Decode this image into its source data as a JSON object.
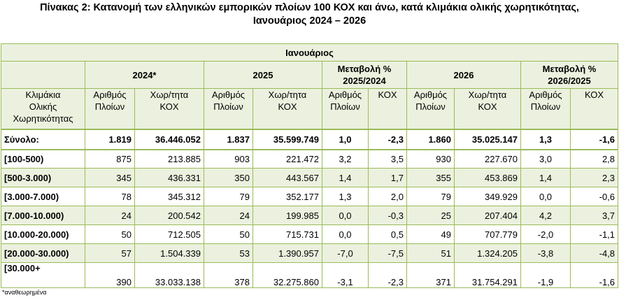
{
  "title_line1": "Πίνακας 2: Κατανομή των ελληνικών εμπορικών πλοίων 100 ΚΟΧ και άνω, κατά κλιμάκια ολικής χωρητικότητας,",
  "title_line2": "Ιανουάριος 2024 – 2026",
  "header": {
    "month": "Ιανουάριος",
    "y2024": "2024*",
    "y2025": "2025",
    "chg1_line1": "Μεταβολή %",
    "chg1_line2": "2025/2024",
    "y2026": "2026",
    "chg2_line1": "Μεταβολή %",
    "chg2_line2": "2026/2025"
  },
  "subheader": {
    "class_line1": "Κλιμάκια",
    "class_line2": "Ολικής",
    "class_line3": "Χωρητικότητας",
    "ships_line1": "Αριθμός",
    "ships_line2": "Πλοίων",
    "gt_line1": "Χωρ/τητα",
    "gt_line2": "ΚΟΧ",
    "kox": "ΚΟΧ"
  },
  "total": {
    "label": "Σύνολο:",
    "v": [
      "1.819",
      "36.446.052",
      "1.837",
      "35.599.749",
      "1,0",
      "-2,3",
      "1.860",
      "35.025.147",
      "1,3",
      "-1,6"
    ]
  },
  "rows": [
    {
      "label": "[100-500)",
      "v": [
        "875",
        "213.885",
        "903",
        "221.472",
        "3,2",
        "3,5",
        "930",
        "227.670",
        "3,0",
        "2,8"
      ]
    },
    {
      "label": "[500-3.000)",
      "v": [
        "345",
        "436.331",
        "350",
        "443.567",
        "1,4",
        "1,7",
        "355",
        "453.869",
        "1,4",
        "2,3"
      ]
    },
    {
      "label": "[3.000-7.000)",
      "v": [
        "78",
        "345.312",
        "79",
        "352.177",
        "1,3",
        "2,0",
        "79",
        "349.929",
        "0,0",
        "-0,6"
      ]
    },
    {
      "label": "[7.000-10.000)",
      "v": [
        "24",
        "200.542",
        "24",
        "199.985",
        "0,0",
        "-0,3",
        "25",
        "207.404",
        "4,2",
        "3,7"
      ]
    },
    {
      "label": "[10.000-20.000)",
      "v": [
        "50",
        "712.505",
        "50",
        "715.731",
        "0,0",
        "0,5",
        "49",
        "707.779",
        "-2,0",
        "-1,1"
      ]
    },
    {
      "label": "[20.000-30.000)",
      "v": [
        "57",
        "1.504.339",
        "53",
        "1.390.957",
        "-7,0",
        "-7,5",
        "51",
        "1.324.205",
        "-3,8",
        "-4,8"
      ]
    },
    {
      "label": "[30.000+",
      "v": [
        "390",
        "33.033.138",
        "378",
        "32.275.860",
        "-3,1",
        "-2,3",
        "371",
        "31.754.291",
        "-1,9",
        "-1,6"
      ]
    }
  ],
  "footnote": "*αναθεωρημένα"
}
